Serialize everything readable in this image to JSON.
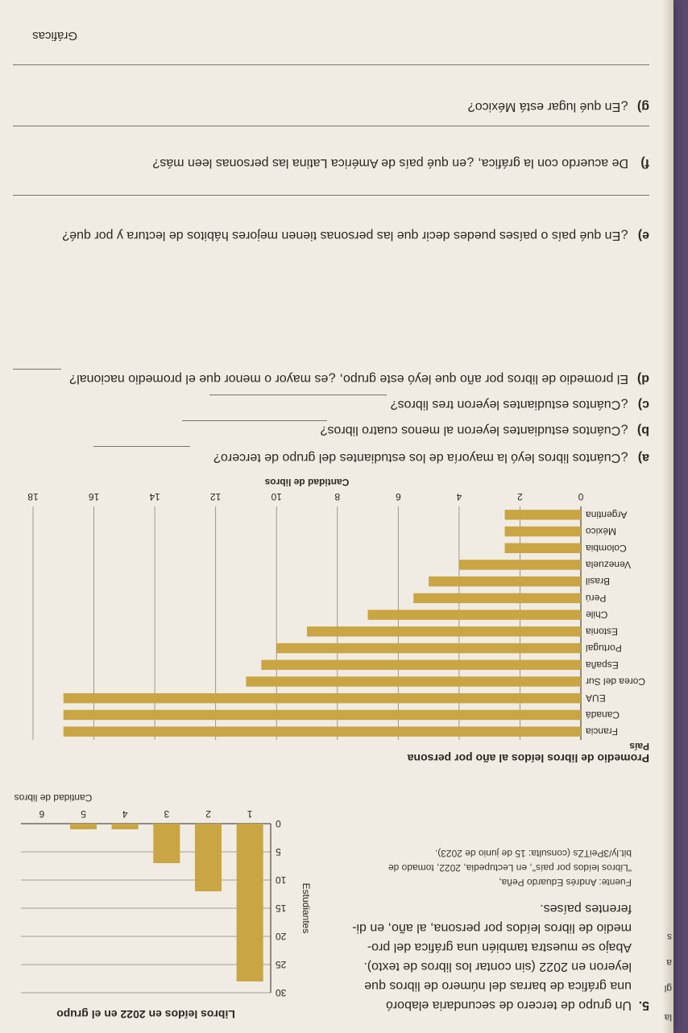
{
  "page": {
    "margin_letters": [
      "a",
      "gl",
      "a",
      "s",
      "la"
    ]
  },
  "problem": {
    "number": "5.",
    "lines": [
      "Un grupo de tercero de secundaria elaboró",
      "una gráfica de barras del número de libros que",
      "leyeron en 2022 (sin contar los libros de texto).",
      "Abajo se muestra también una gráfica del pro-",
      "medio de libros leídos por persona, al año, en di-",
      "ferentes países."
    ]
  },
  "source": {
    "lines": [
      "Fuente: Andrés Eduardo Peña,",
      "\"Libros leídos por país\", en Lectupedia, 2022, tomado de",
      "bit.ly/3PeiTZs (consulta: 15 de junio de 2023)."
    ]
  },
  "chart_data": [
    {
      "type": "bar",
      "title": "Libros leídos en 2022 en el grupo",
      "xlabel": "Cantidad de libros",
      "ylabel": "Estudiantes",
      "categories": [
        "1",
        "2",
        "3",
        "4",
        "5",
        "6"
      ],
      "values": [
        28,
        12,
        7,
        1,
        1,
        0
      ],
      "ylim": [
        0,
        30
      ],
      "yticks": [
        "0",
        "5",
        "10",
        "15",
        "20",
        "25",
        "30"
      ],
      "grid": true,
      "bar_color": "#c9a544"
    },
    {
      "type": "bar",
      "orientation": "horizontal",
      "title": "Promedio de libros leídos al año por persona",
      "xlabel": "Cantidad de libros",
      "ylabel": "País",
      "categories": [
        "Francia",
        "Canadá",
        "EUA",
        "Corea del Sur",
        "España",
        "Portugal",
        "Estonia",
        "Chile",
        "Perú",
        "Brasil",
        "Venezuela",
        "Colombia",
        "México",
        "Argentina"
      ],
      "values": [
        17,
        17,
        17,
        11,
        10.5,
        10,
        9,
        7,
        5.5,
        5,
        4,
        2.5,
        2.5,
        2.5
      ],
      "xlim": [
        0,
        18
      ],
      "xticks": [
        "0",
        "2",
        "4",
        "6",
        "8",
        "10",
        "12",
        "14",
        "16",
        "18"
      ],
      "grid": true,
      "bar_color": "#c9a544"
    }
  ],
  "questions": [
    {
      "letter": "a)",
      "text": "¿Cuántos libros leyó la mayoría de los estudiantes del grupo de tercero?"
    },
    {
      "letter": "b)",
      "text": "¿Cuántos estudiantes leyeron al menos cuatro libros?"
    },
    {
      "letter": "c)",
      "text": "¿Cuántos estudiantes leyeron tres libros?"
    },
    {
      "letter": "d)",
      "text": "El promedio de libros por año que leyó este grupo, ¿es mayor o menor que el promedio nacional?"
    },
    {
      "letter": "e)",
      "text": "¿En qué país o países puedes decir que las personas tienen mejores hábitos de lectura y por qué?"
    },
    {
      "letter": "f)",
      "text": "De acuerdo con la gráfica, ¿en qué país de América Latina las personas leen más?"
    },
    {
      "letter": "g)",
      "text": "¿En qué lugar está México?"
    }
  ],
  "footer": {
    "section": "Gráficas"
  }
}
